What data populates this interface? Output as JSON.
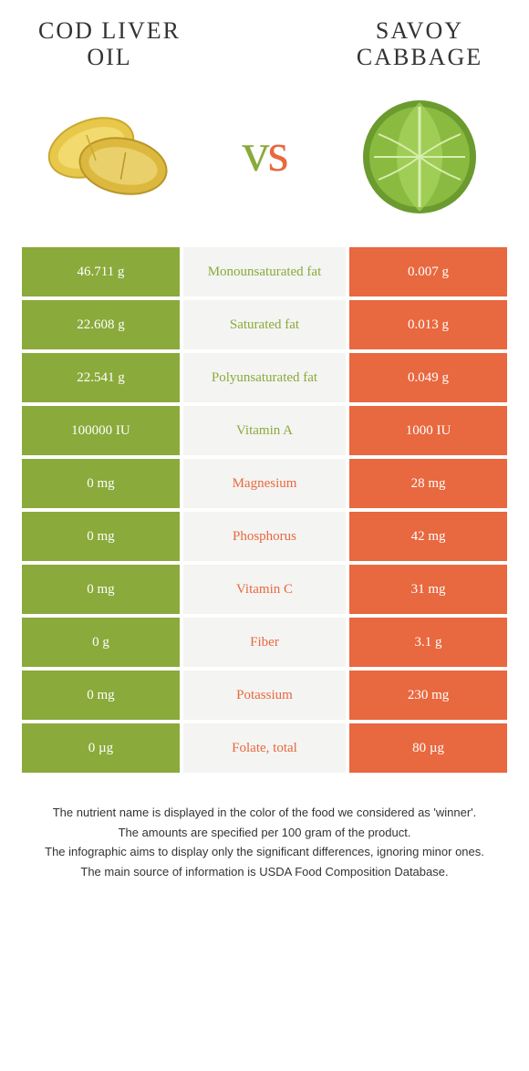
{
  "food_left": {
    "title": "Cod liver oil",
    "color": "#8aaa3b"
  },
  "food_right": {
    "title": "Savoy cabbage",
    "color": "#e8683f"
  },
  "vs": "vs",
  "rows": [
    {
      "left": "46.711 g",
      "mid": "Monounsaturated fat",
      "right": "0.007 g",
      "winner": "left"
    },
    {
      "left": "22.608 g",
      "mid": "Saturated fat",
      "right": "0.013 g",
      "winner": "left"
    },
    {
      "left": "22.541 g",
      "mid": "Polyunsaturated fat",
      "right": "0.049 g",
      "winner": "left"
    },
    {
      "left": "100000 IU",
      "mid": "Vitamin A",
      "right": "1000 IU",
      "winner": "left"
    },
    {
      "left": "0 mg",
      "mid": "Magnesium",
      "right": "28 mg",
      "winner": "right"
    },
    {
      "left": "0 mg",
      "mid": "Phosphorus",
      "right": "42 mg",
      "winner": "right"
    },
    {
      "left": "0 mg",
      "mid": "Vitamin C",
      "right": "31 mg",
      "winner": "right"
    },
    {
      "left": "0 g",
      "mid": "Fiber",
      "right": "3.1 g",
      "winner": "right"
    },
    {
      "left": "0 mg",
      "mid": "Potassium",
      "right": "230 mg",
      "winner": "right"
    },
    {
      "left": "0 µg",
      "mid": "Folate, total",
      "right": "80 µg",
      "winner": "right"
    }
  ],
  "footer": [
    "The nutrient name is displayed in the color of the food we considered as 'winner'.",
    "The amounts are specified per 100 gram of the product.",
    "The infographic aims to display only the significant differences, ignoring minor ones.",
    "The main source of information is USDA Food Composition Database."
  ],
  "colors": {
    "green": "#8aaa3b",
    "orange": "#e8683f",
    "mid_bg": "#f4f4f2",
    "page_bg": "#ffffff"
  }
}
